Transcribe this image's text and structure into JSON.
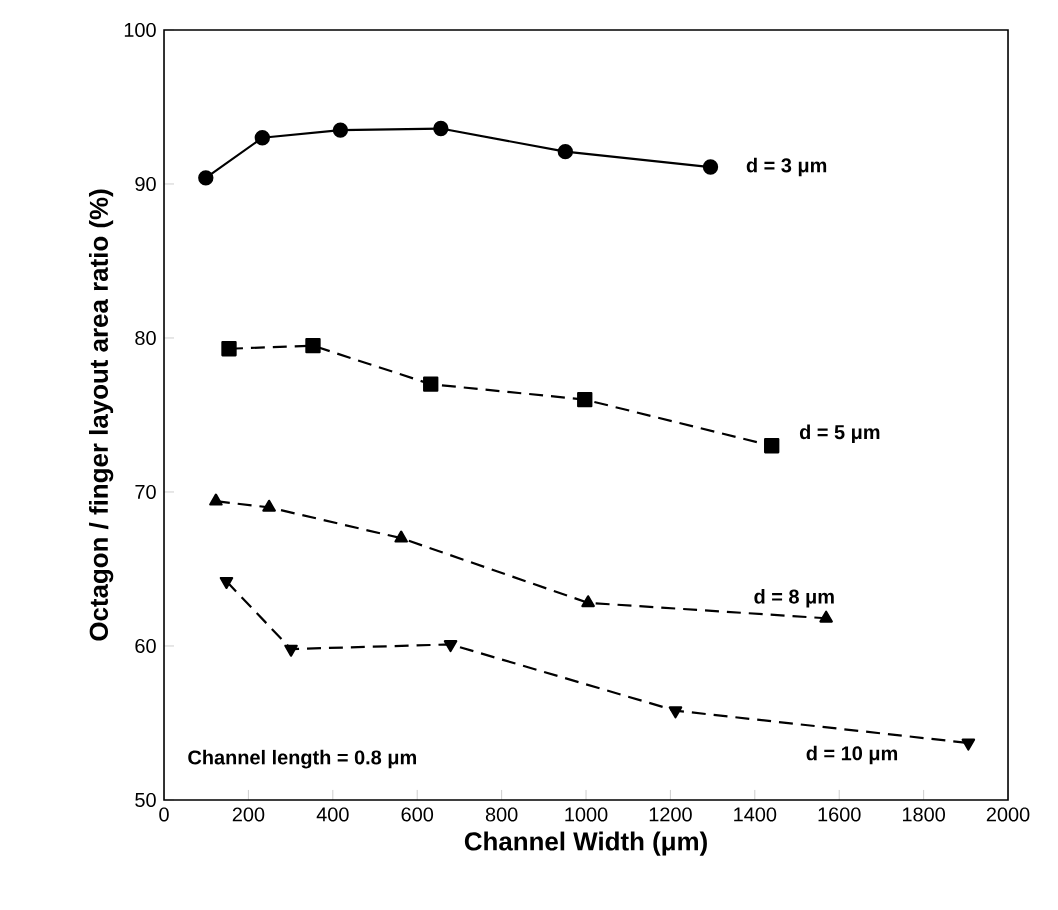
{
  "chart_data": {
    "type": "line",
    "xlabel": "Channel Width (μm)",
    "ylabel": "Octagon / finger layout area ratio (%)",
    "xlim": [
      0,
      2000
    ],
    "xticks": [
      0,
      200,
      400,
      600,
      800,
      1000,
      1200,
      1400,
      1600,
      1800,
      2000
    ],
    "ylim": [
      50,
      100
    ],
    "yticks": [
      50,
      60,
      70,
      80,
      90,
      100
    ],
    "annotations": [
      "Channel length = 0.8 μm"
    ],
    "series": [
      {
        "name": "d = 3 μm",
        "color": "#000000",
        "marker": "circle",
        "line_style": "solid",
        "x": [
          99,
          233,
          418,
          656,
          951,
          1295
        ],
        "values": [
          90.4,
          93.0,
          93.5,
          93.6,
          92.1,
          91.1
        ]
      },
      {
        "name": "d = 5 μm",
        "color": "#000000",
        "marker": "square",
        "line_style": "dashed",
        "x": [
          154,
          353,
          632,
          997,
          1440
        ],
        "values": [
          79.3,
          79.5,
          77.0,
          76.0,
          73.0
        ]
      },
      {
        "name": "d = 8 μm",
        "color": "#000000",
        "marker": "triangle",
        "line_style": "dashed",
        "x": [
          123,
          249,
          562,
          1005,
          1569
        ],
        "values": [
          69.4,
          69.0,
          67.0,
          62.8,
          61.8
        ]
      },
      {
        "name": "d = 10 μm",
        "color": "#000000",
        "marker": "triangle down",
        "line_style": "dashed",
        "x": [
          148,
          301,
          679,
          1212,
          1906
        ],
        "values": [
          64.2,
          59.8,
          60.1,
          55.8,
          53.7
        ]
      }
    ]
  }
}
